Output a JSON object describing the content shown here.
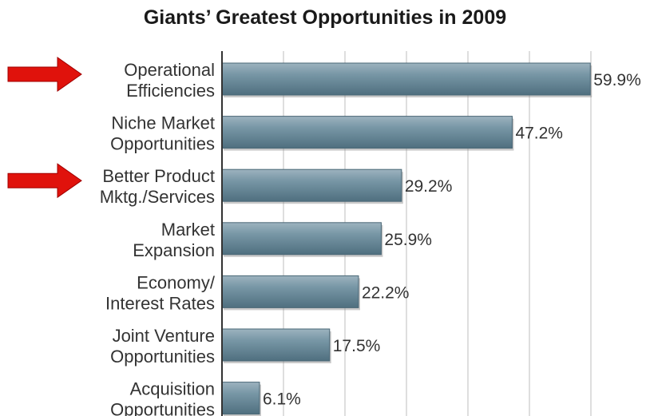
{
  "chart_data": {
    "type": "bar",
    "orientation": "horizontal",
    "title": "Giants’ Greatest Opportunities in 2009",
    "categories": [
      [
        "Operational",
        "Efficiencies"
      ],
      [
        "Niche Market",
        "Opportunities"
      ],
      [
        "Better Product",
        "Mktg./Services"
      ],
      [
        "Market",
        "Expansion"
      ],
      [
        "Economy/",
        "Interest Rates"
      ],
      [
        "Joint Venture",
        "Opportunities"
      ],
      [
        "Acquisition",
        "Opportunities"
      ]
    ],
    "values": [
      59.9,
      47.2,
      29.2,
      25.9,
      22.2,
      17.5,
      6.1
    ],
    "value_labels": [
      "59.9%",
      "47.2%",
      "29.2%",
      "25.9%",
      "22.2%",
      "17.5%",
      "6.1%"
    ],
    "xlim": [
      0,
      60
    ],
    "grid": true,
    "bar_color": "#6e8f9e",
    "highlighted_categories": [
      0,
      2
    ],
    "highlight_arrow_color": "#e0120c"
  }
}
